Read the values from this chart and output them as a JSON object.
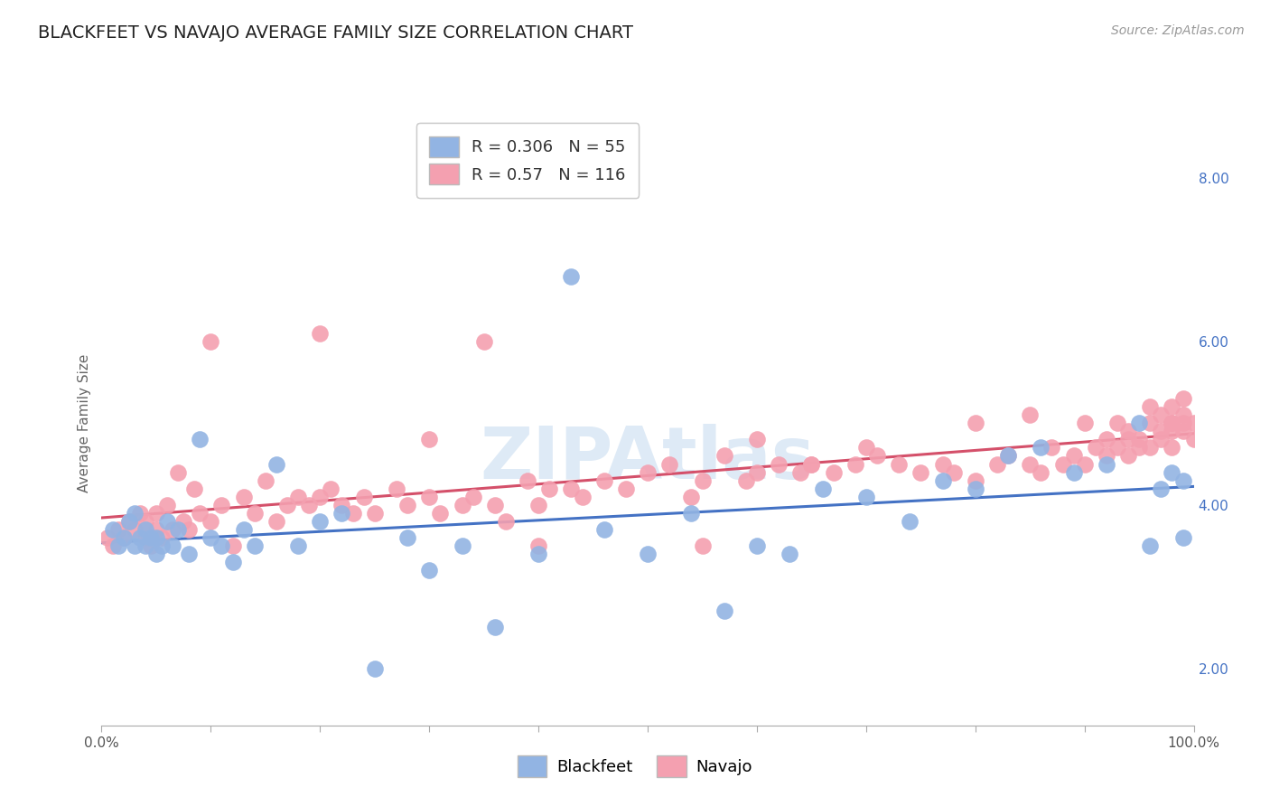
{
  "title": "BLACKFEET VS NAVAJO AVERAGE FAMILY SIZE CORRELATION CHART",
  "source": "Source: ZipAtlas.com",
  "ylabel": "Average Family Size",
  "x_tick_labels": [
    "0.0%",
    "100.0%"
  ],
  "y_ticks": [
    2.0,
    4.0,
    6.0,
    8.0
  ],
  "xlim": [
    0.0,
    1.0
  ],
  "ylim": [
    1.3,
    8.7
  ],
  "blackfeet_R": 0.306,
  "blackfeet_N": 55,
  "navajo_R": 0.57,
  "navajo_N": 116,
  "blackfeet_color": "#92B4E3",
  "navajo_color": "#F4A0B0",
  "blackfeet_line_color": "#4472C4",
  "navajo_line_color": "#D4506A",
  "background_color": "#FFFFFF",
  "grid_color": "#CCCCCC",
  "title_fontsize": 14,
  "label_fontsize": 11,
  "tick_fontsize": 11,
  "legend_fontsize": 13,
  "accent_color": "#4472C4",
  "blackfeet_x": [
    0.01,
    0.015,
    0.02,
    0.025,
    0.03,
    0.03,
    0.035,
    0.04,
    0.04,
    0.045,
    0.05,
    0.05,
    0.055,
    0.06,
    0.065,
    0.07,
    0.08,
    0.09,
    0.1,
    0.11,
    0.12,
    0.13,
    0.14,
    0.16,
    0.18,
    0.2,
    0.22,
    0.25,
    0.28,
    0.3,
    0.33,
    0.36,
    0.4,
    0.43,
    0.46,
    0.5,
    0.54,
    0.57,
    0.6,
    0.63,
    0.66,
    0.7,
    0.74,
    0.77,
    0.8,
    0.83,
    0.86,
    0.89,
    0.92,
    0.95,
    0.96,
    0.97,
    0.98,
    0.99,
    0.99
  ],
  "blackfeet_y": [
    3.7,
    3.5,
    3.6,
    3.8,
    3.5,
    3.9,
    3.6,
    3.5,
    3.7,
    3.6,
    3.6,
    3.4,
    3.5,
    3.8,
    3.5,
    3.7,
    3.4,
    4.8,
    3.6,
    3.5,
    3.3,
    3.7,
    3.5,
    4.5,
    3.5,
    3.8,
    3.9,
    2.0,
    3.6,
    3.2,
    3.5,
    2.5,
    3.4,
    6.8,
    3.7,
    3.4,
    3.9,
    2.7,
    3.5,
    3.4,
    4.2,
    4.1,
    3.8,
    4.3,
    4.2,
    4.6,
    4.7,
    4.4,
    4.5,
    5.0,
    3.5,
    4.2,
    4.4,
    3.6,
    4.3
  ],
  "navajo_x": [
    0.005,
    0.01,
    0.015,
    0.02,
    0.025,
    0.03,
    0.035,
    0.04,
    0.04,
    0.045,
    0.05,
    0.05,
    0.055,
    0.06,
    0.065,
    0.07,
    0.075,
    0.08,
    0.085,
    0.09,
    0.1,
    0.11,
    0.12,
    0.13,
    0.14,
    0.15,
    0.16,
    0.17,
    0.18,
    0.19,
    0.2,
    0.21,
    0.22,
    0.23,
    0.24,
    0.25,
    0.27,
    0.28,
    0.3,
    0.31,
    0.33,
    0.34,
    0.36,
    0.37,
    0.39,
    0.4,
    0.41,
    0.43,
    0.44,
    0.46,
    0.48,
    0.5,
    0.52,
    0.54,
    0.55,
    0.57,
    0.59,
    0.6,
    0.62,
    0.64,
    0.65,
    0.67,
    0.69,
    0.71,
    0.73,
    0.75,
    0.77,
    0.78,
    0.8,
    0.82,
    0.83,
    0.85,
    0.86,
    0.87,
    0.88,
    0.89,
    0.9,
    0.91,
    0.92,
    0.93,
    0.93,
    0.94,
    0.94,
    0.95,
    0.95,
    0.96,
    0.96,
    0.97,
    0.97,
    0.97,
    0.98,
    0.98,
    0.98,
    0.98,
    0.99,
    0.99,
    0.99,
    0.99,
    1.0,
    1.0,
    0.1,
    0.2,
    0.3,
    0.35,
    0.4,
    0.55,
    0.6,
    0.65,
    0.7,
    0.8,
    0.85,
    0.9,
    0.92,
    0.94,
    0.96,
    0.98
  ],
  "navajo_y": [
    3.6,
    3.5,
    3.7,
    3.6,
    3.8,
    3.7,
    3.9,
    3.6,
    3.8,
    3.5,
    3.7,
    3.9,
    3.6,
    4.0,
    3.7,
    4.4,
    3.8,
    3.7,
    4.2,
    3.9,
    3.8,
    4.0,
    3.5,
    4.1,
    3.9,
    4.3,
    3.8,
    4.0,
    4.1,
    4.0,
    4.1,
    4.2,
    4.0,
    3.9,
    4.1,
    3.9,
    4.2,
    4.0,
    4.1,
    3.9,
    4.0,
    4.1,
    4.0,
    3.8,
    4.3,
    4.0,
    4.2,
    4.2,
    4.1,
    4.3,
    4.2,
    4.4,
    4.5,
    4.1,
    4.3,
    4.6,
    4.3,
    4.4,
    4.5,
    4.4,
    4.5,
    4.4,
    4.5,
    4.6,
    4.5,
    4.4,
    4.5,
    4.4,
    4.3,
    4.5,
    4.6,
    4.5,
    4.4,
    4.7,
    4.5,
    4.6,
    4.5,
    4.7,
    4.6,
    4.7,
    5.0,
    4.8,
    4.6,
    4.8,
    4.7,
    4.7,
    5.0,
    4.8,
    5.1,
    4.9,
    5.0,
    4.7,
    4.9,
    5.2,
    5.0,
    5.1,
    5.3,
    4.9,
    5.0,
    4.8,
    6.0,
    6.1,
    4.8,
    6.0,
    3.5,
    3.5,
    4.8,
    4.5,
    4.7,
    5.0,
    5.1,
    5.0,
    4.8,
    4.9,
    5.2,
    5.0
  ]
}
